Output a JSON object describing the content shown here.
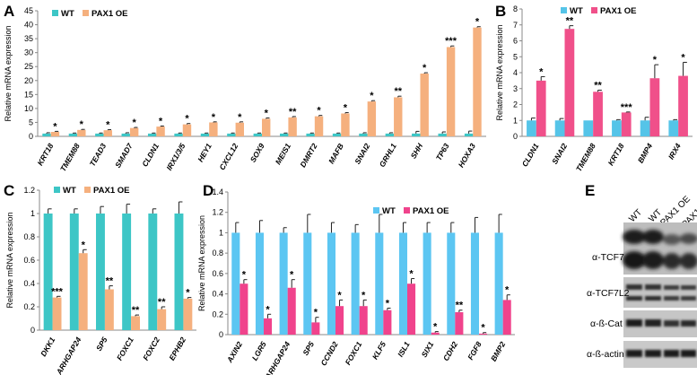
{
  "colors": {
    "wt": "#3dc6c6",
    "oe": "#f5b07e",
    "wt_b": "#55c4e8",
    "oe_b": "#f0508a",
    "wt_d": "#5cc6f2",
    "oe_d": "#f0438c"
  },
  "chart_data": [
    {
      "panel": "A",
      "type": "bar",
      "ylabel": "Relative mRNA expression",
      "ylim": [
        0,
        45
      ],
      "yticks": [
        0,
        5,
        10,
        15,
        20,
        25,
        30,
        35,
        40,
        45
      ],
      "categories": [
        "KRT18",
        "TMEM88",
        "TEAD3",
        "SMAD7",
        "CLDN1",
        "IRX1/3/5",
        "HEY1",
        "CXCL12",
        "SOX9",
        "MEIS1",
        "DMRT2",
        "MAFB",
        "SNAI2",
        "GRHL1",
        "SHH",
        "TP63",
        "HOXA3"
      ],
      "series": [
        {
          "name": "WT",
          "values": [
            1,
            1,
            1,
            1,
            1,
            1,
            1,
            1,
            1,
            1,
            1,
            1,
            1,
            1,
            1,
            1,
            1
          ],
          "errors": [
            0.3,
            0.2,
            0.2,
            0.3,
            0.2,
            0.2,
            0.2,
            0.2,
            0.2,
            0.2,
            0.2,
            0.2,
            0.3,
            0.3,
            0.8,
            0.6,
            0.9
          ]
        },
        {
          "name": "PAX1 OE",
          "values": [
            1.6,
            2.3,
            2.2,
            3.0,
            3.5,
            4.3,
            5.0,
            4.9,
            6.3,
            6.8,
            7.2,
            8.2,
            12.5,
            14.0,
            22.5,
            32.0,
            39.0
          ],
          "errors": [
            0.2,
            0.2,
            0.2,
            0.2,
            0.2,
            0.3,
            0.2,
            0.3,
            0.3,
            0.3,
            0.3,
            0.3,
            0.3,
            0.4,
            0.3,
            0.4,
            0.3
          ]
        }
      ],
      "significance": [
        "*",
        "*",
        "*",
        "*",
        "*",
        "*",
        "*",
        "*",
        "*",
        "**",
        "*",
        "*",
        "*",
        "**",
        "*",
        "***",
        "*"
      ]
    },
    {
      "panel": "B",
      "type": "bar",
      "ylabel": "Relative mRNA expression",
      "ylim": [
        0,
        8
      ],
      "yticks": [
        0,
        1,
        2,
        3,
        4,
        5,
        6,
        7,
        8
      ],
      "categories": [
        "CLDN1",
        "SNAI2",
        "TMEM88",
        "KRT18",
        "BMP4",
        "IRX4"
      ],
      "series": [
        {
          "name": "WT",
          "values": [
            1,
            1,
            1,
            1,
            1,
            1
          ],
          "errors": [
            0.15,
            0.12,
            0,
            0.05,
            0.2,
            0.05
          ]
        },
        {
          "name": "PAX1 OE",
          "values": [
            3.5,
            6.75,
            2.8,
            1.5,
            3.65,
            3.8
          ],
          "errors": [
            0.25,
            0.2,
            0.1,
            0.03,
            0.85,
            0.85
          ]
        }
      ],
      "significance": [
        "*",
        "**",
        "**",
        "***",
        "*",
        "*"
      ]
    },
    {
      "panel": "C",
      "type": "bar",
      "ylabel": "Relative mRNA expression",
      "ylim": [
        0,
        1.2
      ],
      "yticks": [
        "0",
        "0.2",
        "0.4",
        "0.6",
        "0.8",
        "1",
        "1.2"
      ],
      "categories": [
        "DKK1",
        "ARHGAP24",
        "SP5",
        "FOXC1",
        "FOXC2",
        "EPHB2"
      ],
      "series": [
        {
          "name": "WT",
          "values": [
            1,
            1,
            1,
            1,
            1,
            1
          ],
          "errors": [
            0.04,
            0.04,
            0.06,
            0.08,
            0.04,
            0.1
          ]
        },
        {
          "name": "PAX1 OE",
          "values": [
            0.28,
            0.66,
            0.35,
            0.12,
            0.18,
            0.27
          ],
          "errors": [
            0.01,
            0.03,
            0.03,
            0.01,
            0.02,
            0.01
          ]
        }
      ],
      "significance": [
        "***",
        "*",
        "**",
        "**",
        "**",
        "*"
      ]
    },
    {
      "panel": "D",
      "type": "bar",
      "ylabel": "Relative mRNA expression",
      "ylim": [
        0,
        1.4
      ],
      "yticks": [
        "0",
        "0.2",
        "0.4",
        "0.6",
        "0.8",
        "1",
        "1.2",
        "1.4"
      ],
      "categories": [
        "AXIN2",
        "LGR5",
        "ARHGAP24",
        "SP5",
        "CCND2",
        "FOXC1",
        "KLF5",
        "ISL1",
        "SIX1",
        "CDH2",
        "FGF8",
        "BMP2"
      ],
      "series": [
        {
          "name": "WT",
          "values": [
            1,
            1,
            1,
            1,
            1,
            1,
            1,
            1,
            1,
            1,
            1,
            1
          ],
          "errors": [
            0.1,
            0.12,
            0.05,
            0.18,
            0.1,
            0.08,
            0.18,
            0.1,
            0.1,
            0.1,
            0.15,
            0.18
          ]
        },
        {
          "name": "PAX1 OE",
          "values": [
            0.5,
            0.16,
            0.46,
            0.12,
            0.28,
            0.28,
            0.24,
            0.5,
            0.02,
            0.22,
            0.01,
            0.34
          ],
          "errors": [
            0.04,
            0.04,
            0.08,
            0.05,
            0.06,
            0.06,
            0.02,
            0.05,
            0.01,
            0.02,
            0.01,
            0.05
          ]
        }
      ],
      "significance": [
        "*",
        "*",
        "*",
        "*",
        "*",
        "*",
        "*",
        "*",
        "*",
        "**",
        "*",
        "*"
      ]
    }
  ],
  "legend": {
    "wt": "WT",
    "oe": "PAX1 OE"
  },
  "panel_labels": {
    "a": "A",
    "b": "B",
    "c": "C",
    "d": "D",
    "e": "E"
  },
  "western_blot": {
    "lanes": [
      "WT",
      "WT",
      "PAX1 OE",
      "PAX1 OE"
    ],
    "rows": [
      "α-TCF7",
      "α-TCF7L2",
      "α-ß-Cat",
      "α-ß-actin"
    ]
  }
}
